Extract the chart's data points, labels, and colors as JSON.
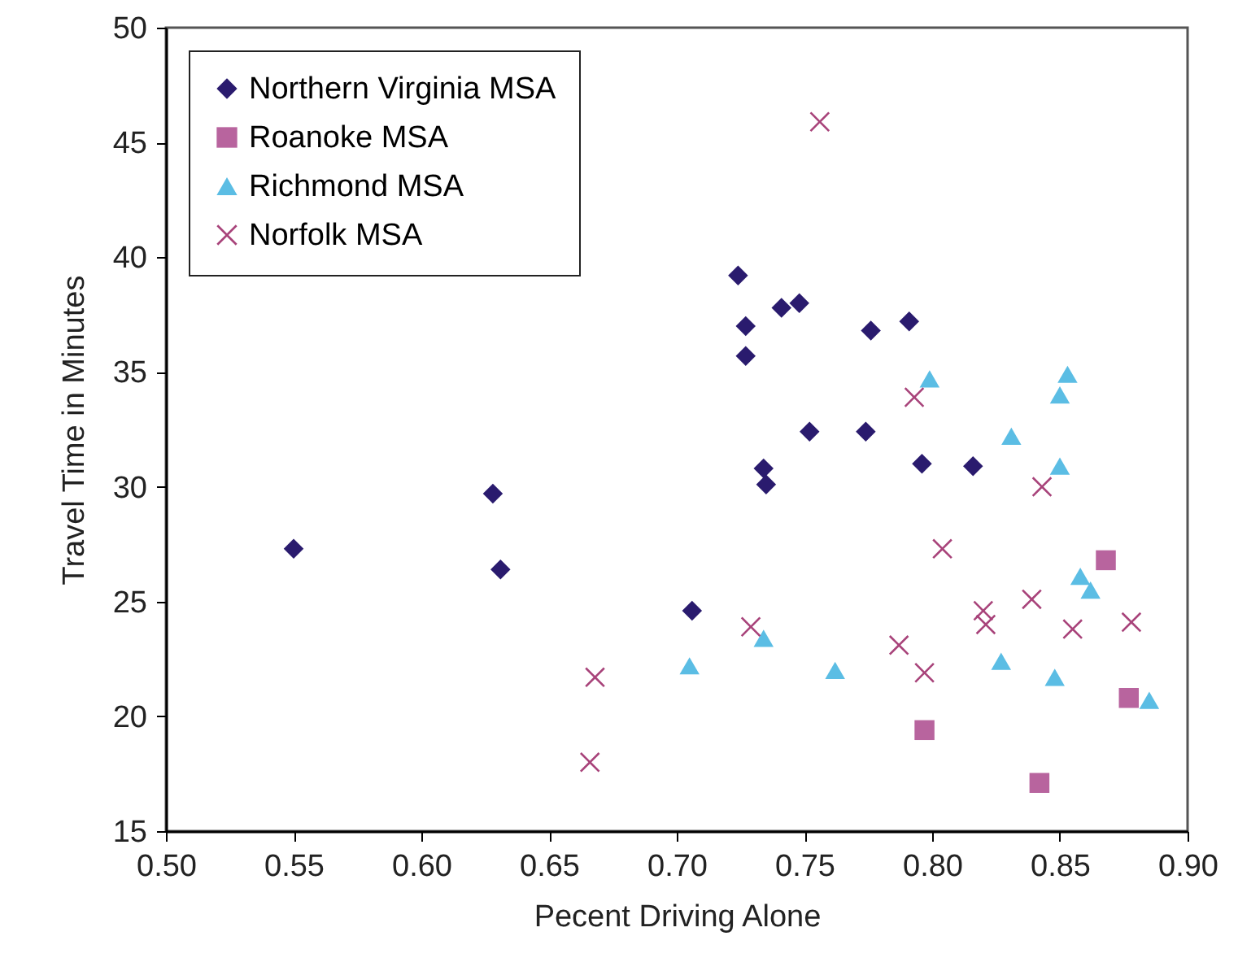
{
  "chart_data": {
    "type": "scatter",
    "xlabel": "Pecent Driving Alone",
    "ylabel": "Travel Time in Minutes",
    "xlim": [
      0.5,
      0.9
    ],
    "xticks": [
      {
        "value": 0.5,
        "label": "0.50"
      },
      {
        "value": 0.55,
        "label": "0.55"
      },
      {
        "value": 0.6,
        "label": "0.60"
      },
      {
        "value": 0.65,
        "label": "0.65"
      },
      {
        "value": 0.7,
        "label": "0.70"
      },
      {
        "value": 0.75,
        "label": "0.75"
      },
      {
        "value": 0.8,
        "label": "0.80"
      },
      {
        "value": 0.85,
        "label": "0.85"
      },
      {
        "value": 0.9,
        "label": "0.90"
      }
    ],
    "ylim": [
      15,
      50
    ],
    "yticks": [
      15,
      20,
      25,
      30,
      35,
      40,
      45,
      50
    ],
    "grid": false,
    "legend": "top left",
    "series": [
      {
        "name": "Northern Virginia MSA",
        "color": "#2a1b6e",
        "marker": "diamond",
        "x": [
          0.55,
          0.628,
          0.631,
          0.724,
          0.727,
          0.727,
          0.741,
          0.748,
          0.776,
          0.791,
          0.752,
          0.774,
          0.796,
          0.816,
          0.734,
          0.735,
          0.706
        ],
        "values": [
          27.3,
          29.7,
          26.4,
          39.2,
          37.0,
          35.7,
          37.8,
          38.0,
          36.8,
          37.2,
          32.4,
          32.4,
          31.0,
          30.9,
          30.8,
          30.1,
          24.6
        ]
      },
      {
        "name": "Roanoke MSA",
        "color": "#b8649e",
        "marker": "square",
        "x": [
          0.868,
          0.877,
          0.797,
          0.842
        ],
        "values": [
          26.8,
          20.8,
          19.4,
          17.1
        ]
      },
      {
        "name": "Richmond MSA",
        "color": "#5bbde4",
        "marker": "triangle",
        "x": [
          0.705,
          0.734,
          0.762,
          0.827,
          0.848,
          0.885,
          0.858,
          0.862,
          0.799,
          0.853,
          0.85,
          0.831,
          0.85
        ],
        "values": [
          22.2,
          23.4,
          22.0,
          22.4,
          21.7,
          20.7,
          26.1,
          25.5,
          34.7,
          34.9,
          34.0,
          32.2,
          30.9
        ]
      },
      {
        "name": "Norfolk MSA",
        "color": "#a8437a",
        "marker": "cross",
        "x": [
          0.756,
          0.793,
          0.843,
          0.804,
          0.82,
          0.821,
          0.839,
          0.855,
          0.878,
          0.787,
          0.797,
          0.729,
          0.668,
          0.666
        ],
        "values": [
          45.9,
          33.9,
          30.0,
          27.3,
          24.6,
          24.0,
          25.1,
          23.8,
          24.1,
          23.1,
          21.9,
          23.9,
          21.7,
          18.0
        ]
      }
    ]
  }
}
